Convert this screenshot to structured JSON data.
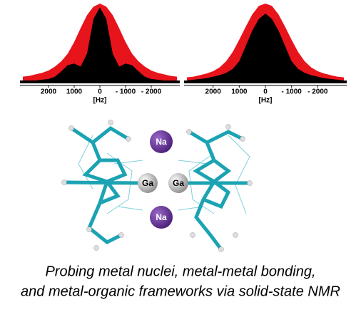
{
  "chart_data": [
    {
      "type": "area",
      "xlabel": "[Hz]",
      "xlim": [
        3000,
        -3000
      ],
      "ylim": [
        0,
        1
      ],
      "xticks": [
        2000,
        1000,
        0,
        {
          "value": -1000,
          "label": "- 1000"
        },
        {
          "value": -2000,
          "label": "- 2000"
        }
      ],
      "x": [
        3000,
        2750,
        2500,
        2250,
        2000,
        1750,
        1500,
        1250,
        1000,
        750,
        500,
        250,
        0,
        -250,
        -500,
        -750,
        -1000,
        -1250,
        -1500,
        -1750,
        -2000,
        -2250,
        -2500,
        -2750,
        -3000
      ],
      "series": [
        {
          "color": "#e8141b",
          "values": [
            0.05,
            0.06,
            0.08,
            0.1,
            0.13,
            0.18,
            0.25,
            0.35,
            0.5,
            0.68,
            0.85,
            0.96,
            1.0,
            0.96,
            0.85,
            0.68,
            0.5,
            0.35,
            0.25,
            0.18,
            0.13,
            0.1,
            0.08,
            0.06,
            0.05
          ]
        },
        {
          "color": "#000000",
          "values": [
            0,
            0,
            0,
            0.01,
            0.02,
            0.05,
            0.12,
            0.2,
            0.22,
            0.18,
            0.35,
            0.8,
            0.95,
            0.8,
            0.35,
            0.18,
            0.22,
            0.2,
            0.12,
            0.05,
            0.02,
            0.01,
            0,
            0,
            0
          ]
        }
      ]
    },
    {
      "type": "area",
      "xlabel": "[Hz]",
      "xlim": [
        3000,
        -3000
      ],
      "ylim": [
        0,
        1
      ],
      "xticks": [
        2000,
        1000,
        0,
        {
          "value": -1000,
          "label": "- 1000"
        },
        {
          "value": -2000,
          "label": "- 2000"
        }
      ],
      "x": [
        3000,
        2750,
        2500,
        2250,
        2000,
        1750,
        1500,
        1250,
        1000,
        750,
        500,
        250,
        0,
        -250,
        -500,
        -750,
        -1000,
        -1250,
        -1500,
        -1750,
        -2000,
        -2250,
        -2500,
        -2750,
        -3000
      ],
      "series": [
        {
          "color": "#e8141b",
          "values": [
            0.04,
            0.05,
            0.07,
            0.09,
            0.12,
            0.17,
            0.25,
            0.37,
            0.53,
            0.7,
            0.86,
            0.97,
            1.0,
            0.97,
            0.86,
            0.7,
            0.53,
            0.37,
            0.25,
            0.17,
            0.12,
            0.09,
            0.07,
            0.05,
            0.04
          ]
        },
        {
          "color": "#000000",
          "values": [
            0,
            0.01,
            0.02,
            0.03,
            0.05,
            0.07,
            0.1,
            0.15,
            0.25,
            0.45,
            0.65,
            0.8,
            0.87,
            0.8,
            0.65,
            0.45,
            0.25,
            0.15,
            0.1,
            0.07,
            0.05,
            0.03,
            0.02,
            0.01,
            0
          ]
        }
      ]
    }
  ],
  "molecule": {
    "atoms": [
      "Na",
      "Ga",
      "Ga",
      "Na"
    ]
  },
  "caption": [
    "Probing metal nuclei, metal-metal bonding,",
    "and metal-organic frameworks via solid-state NMR"
  ]
}
